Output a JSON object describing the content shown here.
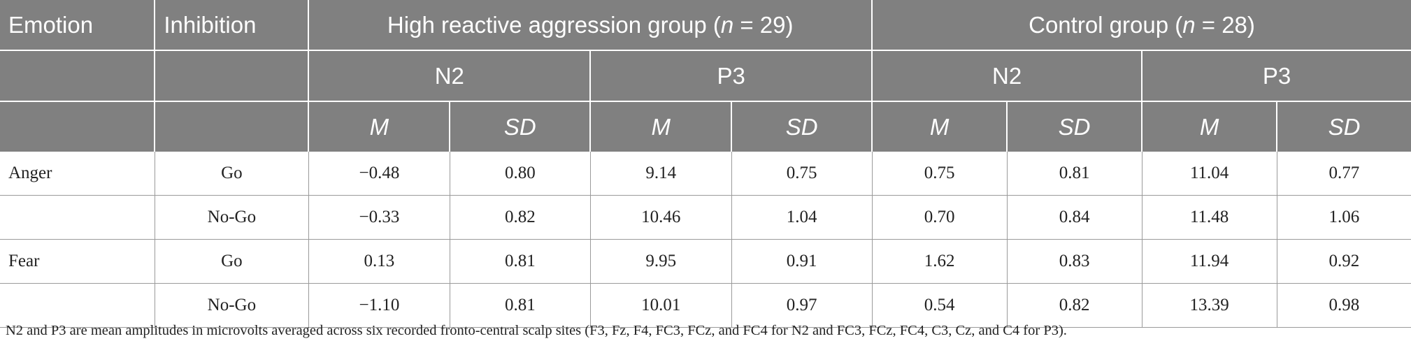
{
  "header": {
    "emotion": "Emotion",
    "inhibition": "Inhibition",
    "group1": {
      "prefix": "High reactive aggression group (",
      "n_symbol": "n",
      "suffix": " = 29)"
    },
    "group2": {
      "prefix": "Control group (",
      "n_symbol": "n",
      "suffix": " = 28)"
    },
    "components": [
      "N2",
      "P3",
      "N2",
      "P3"
    ],
    "stats": [
      "M",
      "SD",
      "M",
      "SD",
      "M",
      "SD",
      "M",
      "SD"
    ]
  },
  "rows": [
    {
      "emotion": "Anger",
      "inhibition": "Go",
      "values": [
        "−0.48",
        "0.80",
        "9.14",
        "0.75",
        "0.75",
        "0.81",
        "11.04",
        "0.77"
      ]
    },
    {
      "emotion": "",
      "inhibition": "No-Go",
      "values": [
        "−0.33",
        "0.82",
        "10.46",
        "1.04",
        "0.70",
        "0.84",
        "11.48",
        "1.06"
      ]
    },
    {
      "emotion": "Fear",
      "inhibition": "Go",
      "values": [
        "0.13",
        "0.81",
        "9.95",
        "0.91",
        "1.62",
        "0.83",
        "11.94",
        "0.92"
      ]
    },
    {
      "emotion": "",
      "inhibition": "No-Go",
      "values": [
        "−1.10",
        "0.81",
        "10.01",
        "0.97",
        "0.54",
        "0.82",
        "13.39",
        "0.98"
      ]
    }
  ],
  "footnote": "N2 and P3 are mean amplitudes in microvolts averaged across six recorded fronto-central scalp sites (F3, Fz, F4, FC3, FCz, and FC4 for N2 and FC3, FCz, FC4, C3, Cz, and C4 for P3).",
  "colors": {
    "header_bg": "#808080",
    "header_text": "#ffffff",
    "body_text": "#222222",
    "rule": "#9a9a9a"
  }
}
